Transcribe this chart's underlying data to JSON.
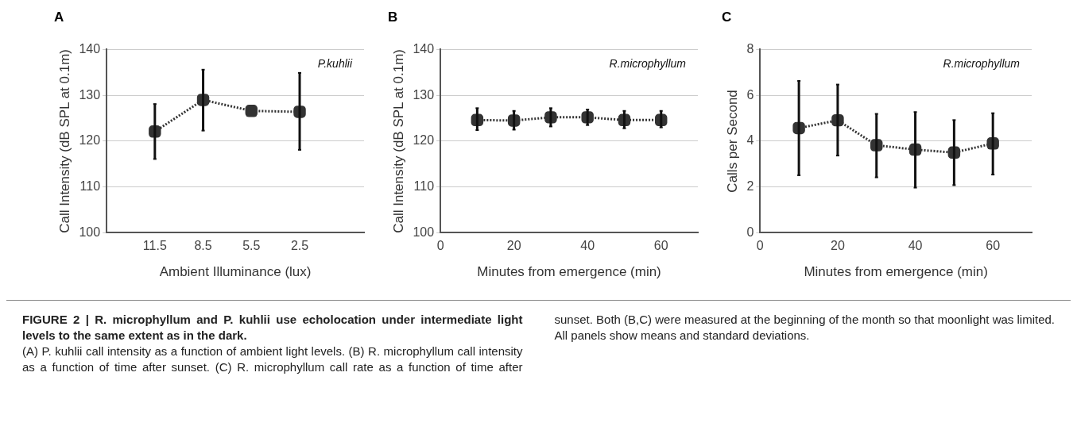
{
  "chart_data": [
    {
      "type": "line",
      "title": "A",
      "xlabel": "Ambient Illuminance (lux)",
      "ylabel": "Call Intensity (dB SPL at 0.1m)",
      "annotations": [
        "P.kuhlii"
      ],
      "x": [
        11.5,
        8.5,
        5.5,
        2.5
      ],
      "xlim": [
        14.5,
        -1.5
      ],
      "xticks": [
        11.5,
        8.5,
        5.5,
        2.5
      ],
      "ylim": [
        100,
        140
      ],
      "yticks": [
        100,
        110,
        120,
        130,
        140
      ],
      "series": [
        {
          "color": "#333333",
          "values": [
            122.1,
            129.0,
            126.6,
            126.4
          ],
          "errors": [
            [
              116.1,
              128.1
            ],
            [
              122.3,
              135.6
            ],
            null,
            [
              118.1,
              134.9
            ]
          ]
        }
      ],
      "grid": "y",
      "marker": "square",
      "line_style": "dotted",
      "legend": false
    },
    {
      "type": "line",
      "title": "B",
      "xlabel": "Minutes from emergence (min)",
      "ylabel": "Call Intensity (dB SPL at 0.1m)",
      "annotations": [
        "R.microphyllum"
      ],
      "x": [
        10,
        20,
        30,
        40,
        50,
        60
      ],
      "xlim": [
        0,
        70
      ],
      "xticks": [
        0,
        20,
        40,
        60
      ],
      "ylim": [
        100,
        140
      ],
      "yticks": [
        100,
        110,
        120,
        130,
        140
      ],
      "series": [
        {
          "color": "#333333",
          "values": [
            124.6,
            124.5,
            125.2,
            125.2,
            124.6,
            124.6
          ],
          "errors": [
            [
              122.4,
              127.2
            ],
            [
              122.5,
              126.6
            ],
            [
              123.2,
              127.2
            ],
            [
              123.5,
              126.9
            ],
            [
              122.8,
              126.6
            ],
            [
              123.0,
              126.6
            ]
          ]
        }
      ],
      "grid": "y",
      "marker": "square",
      "line_style": "dotted",
      "legend": false
    },
    {
      "type": "line",
      "title": "C",
      "xlabel": "Minutes from emergence (min)",
      "ylabel": "Calls per Second",
      "annotations": [
        "R.microphyllum"
      ],
      "x": [
        10,
        20,
        30,
        40,
        50,
        60
      ],
      "xlim": [
        0,
        70
      ],
      "xticks": [
        0,
        20,
        40,
        60
      ],
      "ylim": [
        0,
        8
      ],
      "yticks": [
        0,
        2,
        4,
        6,
        8
      ],
      "series": [
        {
          "color": "#333333",
          "values": [
            4.57,
            4.91,
            3.82,
            3.63,
            3.5,
            3.9
          ],
          "errors": [
            [
              2.51,
              6.63
            ],
            [
              3.37,
              6.47
            ],
            [
              2.42,
              5.19
            ],
            [
              1.97,
              5.27
            ],
            [
              2.08,
              4.92
            ],
            [
              2.54,
              5.22
            ]
          ]
        }
      ],
      "grid": "y",
      "marker": "square",
      "line_style": "dotted",
      "legend": false
    },
    {
      "type": "other",
      "annotations": [
        "FIGURE 2 | R. microphyllum and P. kuhlii use echolocation under intermediate light levels to the same extent as in the dark.",
        "(A) P. kuhlii call intensity as a function of ambient light levels. (B) R. microphyllum call intensity as a function of time after sunset. (C) R. microphyllum call rate as a function of time after sunset. Both (B,C) were measured at the beginning of the month so that moonlight was limited. All panels show means and standard deviations."
      ]
    }
  ]
}
